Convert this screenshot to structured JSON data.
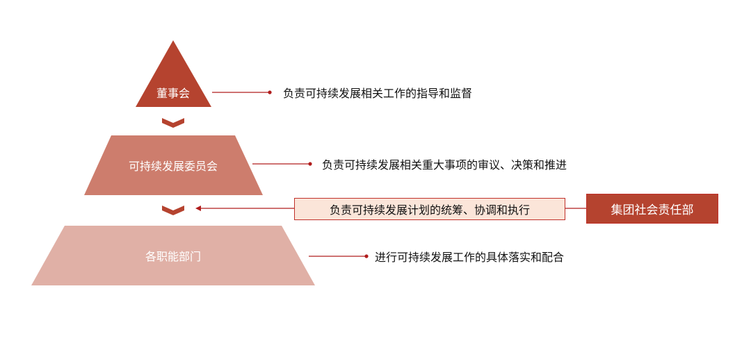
{
  "colors": {
    "level1": "#b5432f",
    "level2": "#cd7d6d",
    "level3": "#e0b0a6",
    "line": "#b01c1c",
    "note_fill": "#fbe5d9"
  },
  "levels": [
    {
      "label": "董事会",
      "desc": "负责可持续发展相关工作的指导和监督"
    },
    {
      "label": "可持续发展委员会",
      "desc": "负责可持续发展相关重大事项的审议、决策和推进"
    },
    {
      "label": "各职能部门",
      "desc": "进行可持续发展工作的具体落实和配合"
    }
  ],
  "side": {
    "note": "负责可持续发展计划的统筹、协调和执行",
    "department": "集团社会责任部"
  }
}
